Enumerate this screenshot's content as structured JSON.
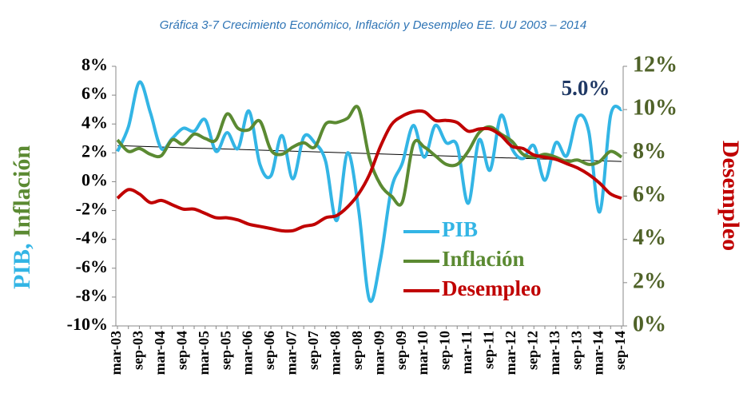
{
  "chart_data": {
    "type": "line",
    "title": "Gráfica 3-7 Crecimiento Económico, Inflación  y Desempleo EE. UU 2003 – 2014",
    "y_label_parts": [
      {
        "text": "PIB, ",
        "color": "#33b5e5"
      },
      {
        "text": "Inflación",
        "color": "#5b8a32"
      }
    ],
    "y2_label": {
      "text": "Desempleo",
      "color": "#c00000"
    },
    "annotation": {
      "text": "5.0%",
      "color": "#1f3864"
    },
    "categories": [
      "mar-03",
      null,
      "sep-03",
      null,
      "mar-04",
      null,
      "sep-04",
      null,
      "mar-05",
      null,
      "sep-05",
      null,
      "mar-06",
      null,
      "sep-06",
      null,
      "mar-07",
      null,
      "sep-07",
      null,
      "mar-08",
      null,
      "sep-08",
      null,
      "mar-09",
      null,
      "sep-09",
      null,
      "mar-10",
      null,
      "sep-10",
      null,
      "mar-11",
      null,
      "sep-11",
      null,
      "mar-12",
      null,
      "sep-12",
      null,
      "mar-13",
      null,
      "sep-13",
      null,
      "mar-14",
      null,
      "sep-14"
    ],
    "series": [
      {
        "name": "PIB",
        "color": "#33b5e5",
        "axis": "y",
        "values": [
          2.1,
          3.8,
          6.9,
          4.8,
          2.3,
          3.0,
          3.7,
          3.5,
          4.3,
          2.1,
          3.4,
          2.3,
          4.9,
          1.2,
          0.4,
          3.2,
          0.2,
          3.1,
          2.7,
          1.4,
          -2.7,
          2.0,
          -1.9,
          -8.2,
          -5.4,
          -0.5,
          1.3,
          3.9,
          1.7,
          3.9,
          2.7,
          2.5,
          -1.5,
          2.9,
          0.8,
          4.6,
          2.3,
          1.6,
          2.5,
          0.1,
          2.7,
          1.8,
          4.5,
          3.5,
          -2.1,
          4.6,
          5.0
        ]
      },
      {
        "name": "Inflación",
        "color": "#5b8a32",
        "axis": "y",
        "values": [
          2.9,
          2.1,
          2.3,
          1.9,
          1.8,
          2.9,
          2.6,
          3.3,
          3.0,
          2.9,
          4.7,
          3.7,
          3.6,
          4.2,
          2.2,
          1.9,
          2.4,
          2.7,
          2.4,
          4.0,
          4.1,
          4.4,
          5.1,
          1.6,
          -0.2,
          -1.0,
          -1.4,
          2.6,
          2.4,
          1.8,
          1.2,
          1.2,
          2.1,
          3.4,
          3.8,
          3.3,
          2.8,
          1.9,
          1.7,
          1.9,
          1.7,
          1.4,
          1.5,
          1.2,
          1.4,
          2.1,
          1.7
        ]
      },
      {
        "name": "Desempleo",
        "color": "#c00000",
        "axis": "y2",
        "values": [
          5.9,
          6.3,
          6.1,
          5.7,
          5.8,
          5.6,
          5.4,
          5.4,
          5.2,
          5.0,
          5.0,
          4.9,
          4.7,
          4.6,
          4.5,
          4.4,
          4.4,
          4.6,
          4.7,
          5.0,
          5.1,
          5.5,
          6.1,
          7.0,
          8.3,
          9.3,
          9.7,
          9.9,
          9.9,
          9.5,
          9.5,
          9.4,
          9.0,
          9.1,
          9.1,
          8.8,
          8.3,
          8.2,
          7.9,
          7.8,
          7.7,
          7.5,
          7.3,
          7.0,
          6.6,
          6.1,
          5.9
        ]
      }
    ],
    "trend": {
      "values": [
        2.5,
        1.4
      ],
      "color": "#000000"
    },
    "ylim": [
      -10,
      8
    ],
    "yticks": [
      {
        "value": -10,
        "label": "-10%"
      },
      {
        "value": -8,
        "label": "-8%"
      },
      {
        "value": -6,
        "label": "-6%"
      },
      {
        "value": -4,
        "label": "-4%"
      },
      {
        "value": -2,
        "label": "-2%"
      },
      {
        "value": 0,
        "label": "0%"
      },
      {
        "value": 2,
        "label": "2%"
      },
      {
        "value": 4,
        "label": "4%"
      },
      {
        "value": 6,
        "label": "6%"
      },
      {
        "value": 8,
        "label": "8%"
      }
    ],
    "y2lim": [
      0,
      12
    ],
    "y2ticks": [
      {
        "value": 0,
        "label": "0%"
      },
      {
        "value": 2,
        "label": "2%"
      },
      {
        "value": 4,
        "label": "4%"
      },
      {
        "value": 6,
        "label": "6%"
      },
      {
        "value": 8,
        "label": "8%"
      },
      {
        "value": 10,
        "label": "10%"
      },
      {
        "value": 12,
        "label": "12%"
      }
    ],
    "grid": false
  }
}
